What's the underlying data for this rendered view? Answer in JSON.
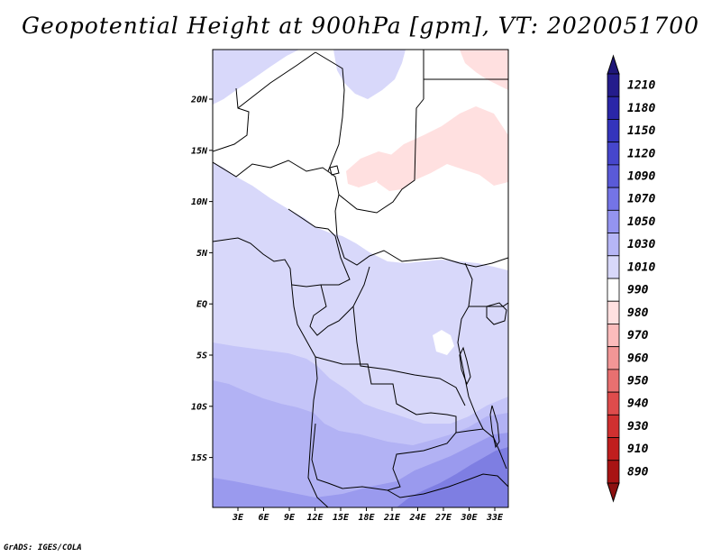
{
  "title": "Geopotential Height at 900hPa [gpm], VT: 2020051700",
  "credit": "GrADS: IGES/COLA",
  "map": {
    "region": "Central Africa",
    "lat_ticks": [
      "20N",
      "15N",
      "10N",
      "5N",
      "EQ",
      "5S",
      "10S",
      "15S"
    ],
    "lon_ticks": [
      "3E",
      "6E",
      "9E",
      "12E",
      "15E",
      "18E",
      "21E",
      "24E",
      "27E",
      "30E",
      "33E"
    ]
  },
  "colorbar": {
    "labels": [
      "1210",
      "1180",
      "1150",
      "1120",
      "1090",
      "1070",
      "1050",
      "1030",
      "1010",
      "990",
      "980",
      "970",
      "960",
      "950",
      "940",
      "930",
      "910",
      "890"
    ],
    "colors": [
      "#241c8c",
      "#2a26a8",
      "#3434bc",
      "#4646cc",
      "#5a5ad8",
      "#7474e6",
      "#9494f0",
      "#b6b6f6",
      "#d8d8fa",
      "#ffffff",
      "#ffe0e0",
      "#fcbcbc",
      "#f29696",
      "#e87070",
      "#de4c4c",
      "#d03030",
      "#c01e1e",
      "#a81414"
    ],
    "top_color": "#1e1678",
    "bottom_color": "#8c1010"
  },
  "field": {
    "white": "#ffffff",
    "pink": "#ffe0e0",
    "lav1": "#d8d8fa",
    "lav2": "#c4c4f8",
    "lav3": "#b2b2f4",
    "lav4": "#9a9aee",
    "lav5": "#7e7ee2"
  }
}
